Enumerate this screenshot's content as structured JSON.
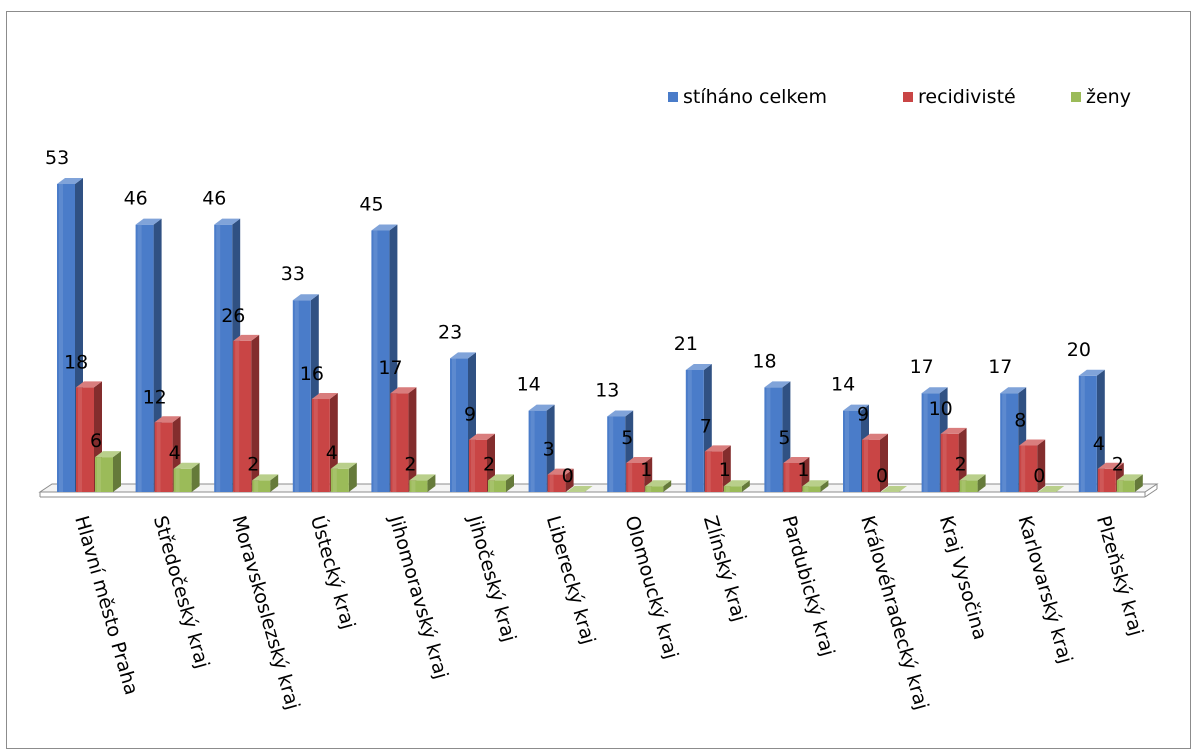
{
  "chart_data": {
    "type": "bar",
    "categories": [
      "Hlavní město Praha",
      "Středočeský kraj",
      "Moravskoslezský kraj",
      "Ústecký kraj",
      "Jihomoravský kraj",
      "Jihočeský kraj",
      "Liberecký kraj",
      "Olomoucký kraj",
      "Zlínský kraj",
      "Pardubický kraj",
      "Královéhradecký kraj",
      "Kraj Vysočina",
      "Karlovarský kraj",
      "Plzeňský kraj"
    ],
    "series": [
      {
        "name": "stíháno celkem",
        "values": [
          53,
          46,
          46,
          33,
          45,
          23,
          14,
          13,
          21,
          18,
          14,
          17,
          17,
          20
        ]
      },
      {
        "name": "recidivisté",
        "values": [
          18,
          12,
          26,
          16,
          17,
          9,
          3,
          5,
          7,
          5,
          9,
          10,
          8,
          4
        ]
      },
      {
        "name": "ženy",
        "values": [
          6,
          4,
          2,
          4,
          2,
          2,
          0,
          1,
          1,
          1,
          0,
          2,
          0,
          2
        ]
      }
    ],
    "data_labels": true,
    "legend_position": "top-right",
    "style": "3d-column",
    "colors": [
      "#4A7CC9",
      "#C94545",
      "#9BBB59"
    ],
    "ylim": [
      0,
      53
    ]
  }
}
